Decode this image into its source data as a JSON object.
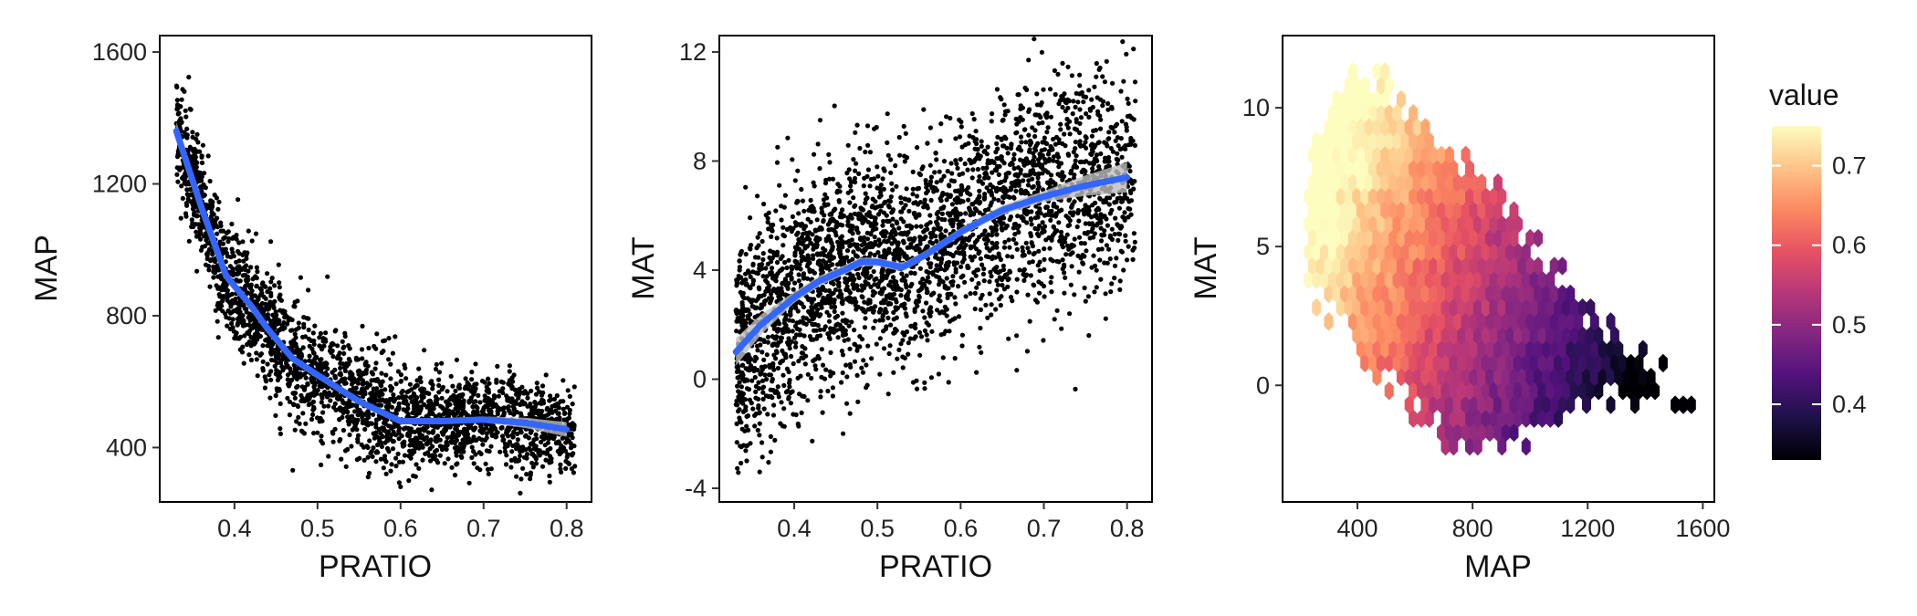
{
  "colors": {
    "points": "#000000",
    "smooth_line": "#3366FF",
    "confidence_band": "#BEBEBE",
    "magma": [
      "#000004",
      "#1d1147",
      "#51127c",
      "#822681",
      "#b73779",
      "#e75263",
      "#fc8961",
      "#fec488",
      "#fcfdbf"
    ]
  },
  "chart_data": [
    {
      "type": "scatter",
      "xlabel": "PRATIO",
      "ylabel": "MAP",
      "xlim": [
        0.31,
        0.83
      ],
      "ylim": [
        235,
        1650
      ],
      "xticks": [
        0.4,
        0.5,
        0.6,
        0.7,
        0.8
      ],
      "yticks": [
        400,
        800,
        1200,
        1600
      ],
      "xtick_labels": [
        "0.4",
        "0.5",
        "0.6",
        "0.7",
        "0.8"
      ],
      "ytick_labels": [
        "400",
        "800",
        "1200",
        "1600"
      ],
      "grid": false,
      "cloud": {
        "n": 2600,
        "x_range": [
          0.33,
          0.81
        ],
        "noise_sd": 85
      },
      "smooth": {
        "x": [
          0.33,
          0.36,
          0.39,
          0.42,
          0.44,
          0.47,
          0.5,
          0.55,
          0.6,
          0.65,
          0.7,
          0.75,
          0.8
        ],
        "y": [
          1360,
          1130,
          920,
          830,
          760,
          670,
          620,
          540,
          480,
          480,
          485,
          475,
          455
        ]
      },
      "band": {
        "x": [
          0.33,
          0.36,
          0.4,
          0.5,
          0.6,
          0.7,
          0.8
        ],
        "half_width": [
          28,
          18,
          12,
          8,
          8,
          9,
          22
        ]
      }
    },
    {
      "type": "scatter",
      "xlabel": "PRATIO",
      "ylabel": "MAT",
      "xlim": [
        0.31,
        0.83
      ],
      "ylim": [
        -4.5,
        12.6
      ],
      "xticks": [
        0.4,
        0.5,
        0.6,
        0.7,
        0.8
      ],
      "yticks": [
        -4,
        0,
        4,
        8,
        12
      ],
      "xtick_labels": [
        "0.4",
        "0.5",
        "0.6",
        "0.7",
        "0.8"
      ],
      "ytick_labels": [
        "-4",
        "0",
        "4",
        "8",
        "12"
      ],
      "grid": false,
      "cloud": {
        "n": 3200,
        "x_range": [
          0.33,
          0.81
        ],
        "noise_sd": 2.0
      },
      "smooth": {
        "x": [
          0.33,
          0.36,
          0.4,
          0.43,
          0.46,
          0.48,
          0.5,
          0.53,
          0.56,
          0.6,
          0.65,
          0.7,
          0.75,
          0.8
        ],
        "y": [
          1.0,
          2.0,
          3.0,
          3.6,
          4.0,
          4.3,
          4.3,
          4.1,
          4.6,
          5.4,
          6.2,
          6.7,
          7.1,
          7.4
        ]
      },
      "band": {
        "x": [
          0.33,
          0.4,
          0.5,
          0.6,
          0.7,
          0.8
        ],
        "half_width": [
          0.5,
          0.2,
          0.15,
          0.15,
          0.2,
          0.55
        ]
      }
    },
    {
      "type": "heatmap",
      "xlabel": "MAP",
      "ylabel": "MAT",
      "xlim": [
        140,
        1640
      ],
      "ylim": [
        -4.2,
        12.6
      ],
      "xticks": [
        400,
        800,
        1200,
        1600
      ],
      "yticks": [
        0,
        5,
        10
      ],
      "xtick_labels": [
        "400",
        "800",
        "1200",
        "1600"
      ],
      "ytick_labels": [
        "0",
        "5",
        "10"
      ],
      "grid": false,
      "legend": {
        "title": "value",
        "position": "right",
        "range": [
          0.33,
          0.75
        ],
        "ticks": [
          0.4,
          0.5,
          0.6,
          0.7
        ],
        "tick_labels": [
          "0.4",
          "0.5",
          "0.6",
          "0.7"
        ]
      },
      "hex": {
        "bin_x": 28,
        "bin_y": 0.5,
        "value_low": 0.34,
        "value_high": 0.74,
        "value_at_x": [
          250,
          1500
        ],
        "mat_effect": 0.012,
        "boundary": {
          "x": [
            230,
            330,
            400,
            500,
            600,
            700,
            800,
            900,
            1000,
            1100,
            1200,
            1300,
            1400,
            1500,
            1570
          ],
          "lower": [
            3.2,
            2.3,
            1.2,
            0.0,
            -1.0,
            -1.9,
            -2.3,
            -2.2,
            -2.0,
            -1.6,
            -1.0,
            -0.6,
            -0.4,
            -0.4,
            -0.5
          ],
          "upper": [
            8.2,
            10.2,
            11.5,
            11.2,
            9.9,
            8.4,
            7.9,
            6.9,
            5.4,
            4.2,
            2.7,
            2.0,
            1.2,
            0.3,
            -0.2
          ]
        }
      }
    }
  ]
}
